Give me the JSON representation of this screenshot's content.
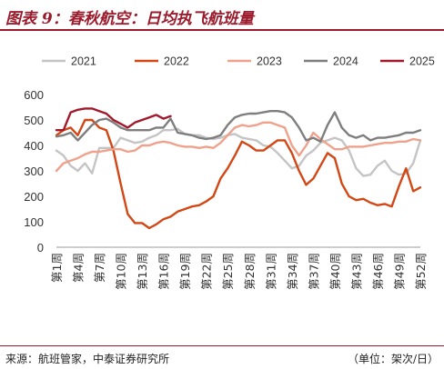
{
  "title": "图表 9：春秋航空：日均执飞航班量",
  "source": "来源：航班管家，中泰证券研究所",
  "unit_note": "（单位：架次/日）",
  "chart_data": {
    "type": "line",
    "ylim": [
      0,
      600
    ],
    "yticks": [
      0,
      100,
      200,
      300,
      400,
      500,
      600
    ],
    "xlim": [
      1,
      52
    ],
    "x_tick_labels": [
      "第1周",
      "第4周",
      "第7周",
      "第10周",
      "第13周",
      "第16周",
      "第19周",
      "第22周",
      "第25周",
      "第28周",
      "第31周",
      "第34周",
      "第37周",
      "第40周",
      "第43周",
      "第46周",
      "第49周",
      "第52周"
    ],
    "grid": false,
    "legend_position": "top",
    "series": [
      {
        "name": "2021",
        "color": "#c4c4c4",
        "values": [
          380,
          360,
          320,
          300,
          330,
          290,
          390,
          390,
          390,
          430,
          420,
          410,
          415,
          430,
          440,
          460,
          460,
          465,
          445,
          440,
          440,
          430,
          425,
          430,
          440,
          445,
          430,
          425,
          420,
          400,
          395,
          370,
          340,
          310,
          320,
          360,
          380,
          410,
          420,
          430,
          420,
          380,
          310,
          280,
          285,
          320,
          340,
          300,
          285,
          290,
          330,
          420
        ]
      },
      {
        "name": "2022",
        "color": "#d24714",
        "values": [
          440,
          460,
          470,
          440,
          500,
          500,
          470,
          460,
          380,
          250,
          130,
          95,
          95,
          75,
          90,
          110,
          120,
          140,
          150,
          160,
          165,
          180,
          200,
          270,
          310,
          360,
          415,
          400,
          380,
          380,
          400,
          420,
          420,
          370,
          300,
          245,
          270,
          320,
          370,
          350,
          250,
          200,
          185,
          190,
          175,
          165,
          170,
          160,
          240,
          310,
          220,
          235
        ]
      },
      {
        "name": "2023",
        "color": "#f0a18b",
        "values": [
          300,
          330,
          340,
          350,
          365,
          375,
          375,
          380,
          385,
          385,
          375,
          380,
          400,
          400,
          410,
          415,
          410,
          400,
          395,
          395,
          390,
          395,
          390,
          410,
          440,
          470,
          480,
          475,
          480,
          490,
          490,
          480,
          470,
          400,
          360,
          400,
          450,
          425,
          405,
          385,
          385,
          395,
          395,
          395,
          400,
          405,
          410,
          410,
          415,
          415,
          425,
          420
        ]
      },
      {
        "name": "2024",
        "color": "#7e7e7e",
        "values": [
          435,
          440,
          450,
          420,
          450,
          480,
          500,
          505,
          490,
          470,
          460,
          460,
          460,
          460,
          470,
          470,
          505,
          450,
          445,
          440,
          430,
          425,
          430,
          440,
          480,
          510,
          520,
          525,
          525,
          530,
          535,
          535,
          530,
          510,
          470,
          420,
          430,
          415,
          480,
          530,
          470,
          440,
          430,
          440,
          420,
          430,
          430,
          435,
          440,
          450,
          450,
          460
        ]
      },
      {
        "name": "2025",
        "color": "#a3192c",
        "values": [
          460,
          460,
          530,
          540,
          545,
          545,
          535,
          525,
          500,
          485,
          470,
          490,
          500,
          510,
          520,
          505,
          515
        ]
      }
    ]
  }
}
